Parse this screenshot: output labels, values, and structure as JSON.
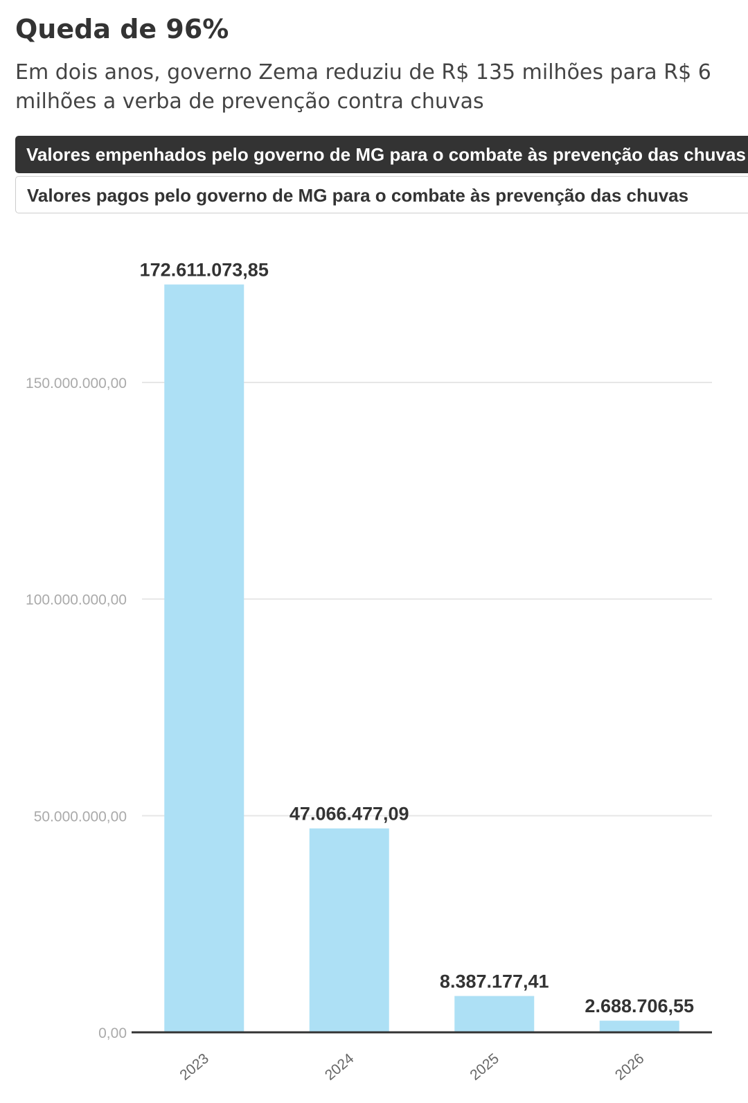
{
  "header": {
    "title": "Queda de 96%",
    "subtitle": "Em dois anos, governo Zema reduziu de R$ 135 milhões para R$ 6 milhões a verba de prevenção contra chuvas"
  },
  "toggles": [
    {
      "label": "Valores empenhados pelo governo de MG para o combate às prevenção das chuvas",
      "active": true
    },
    {
      "label": "Valores pagos pelo governo de MG para o combate às prevenção das chuvas",
      "active": false
    }
  ],
  "chart_data": {
    "type": "bar",
    "categories": [
      "2023",
      "2024",
      "2025",
      "2026"
    ],
    "values": [
      172611073.85,
      47066477.09,
      8387177.41,
      2688706.55
    ],
    "value_labels": [
      "172.611.073,85",
      "47.066.477,09",
      "8.387.177,41",
      "2.688.706,55"
    ],
    "yticks": [
      0,
      50000000,
      100000000,
      150000000
    ],
    "ytick_labels": [
      "0,00",
      "50.000.000,00",
      "100.000.000,00",
      "150.000.000,00"
    ],
    "ylim": [
      0,
      180000000
    ],
    "grid": true,
    "bar_color": "#ade0f5"
  }
}
